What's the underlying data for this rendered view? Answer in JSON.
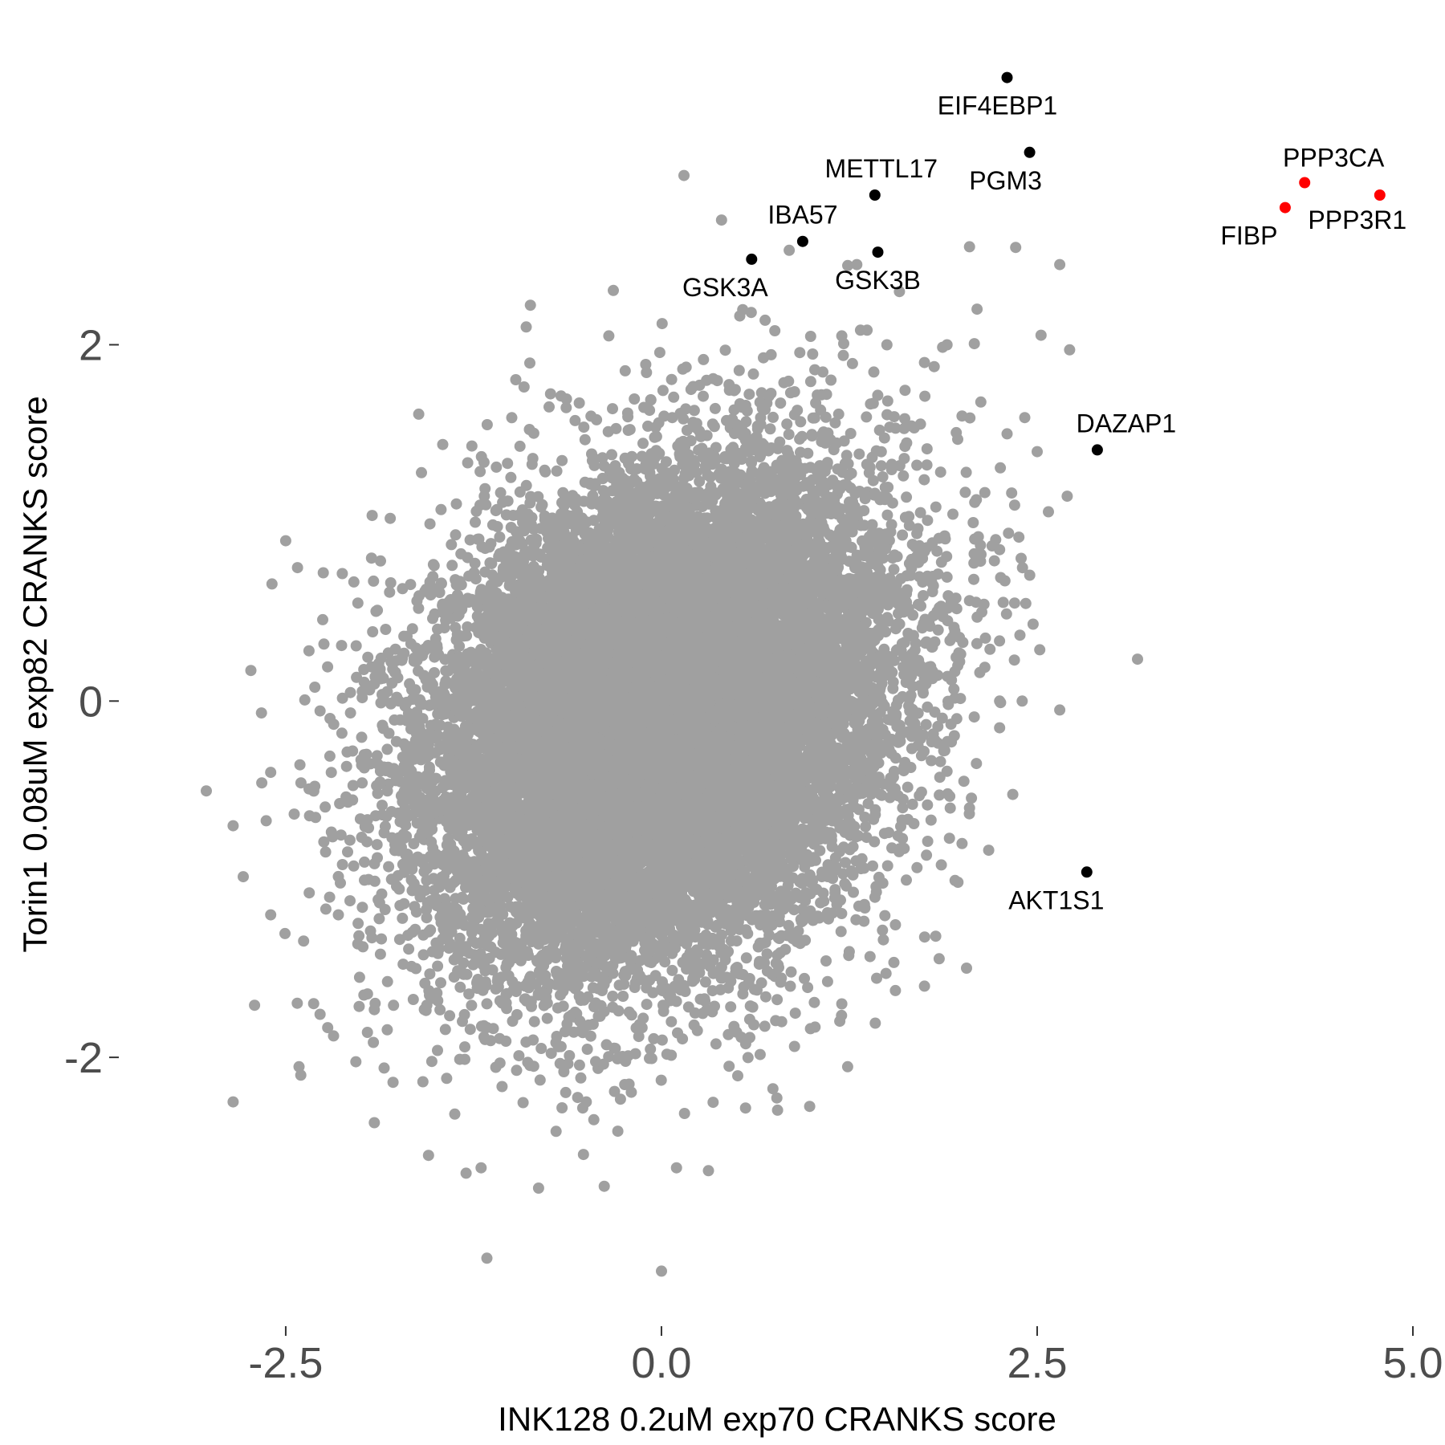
{
  "chart_data": {
    "type": "scatter",
    "xlabel": "INK128 0.2uM exp70 CRANKS score",
    "ylabel": "Torin1 0.08uM exp82 CRANKS score",
    "xlim": [
      -3.6,
      5.0
    ],
    "ylim": [
      -3.5,
      3.8
    ],
    "x_ticks": [
      -2.5,
      0.0,
      2.5,
      5.0
    ],
    "x_tick_labels": [
      "-2.5",
      "0.0",
      "2.5",
      "5.0"
    ],
    "y_ticks": [
      -2,
      0,
      2
    ],
    "y_tick_labels": [
      "-2",
      "0",
      "2"
    ],
    "grid": false,
    "legend": "none",
    "colors": {
      "background_points": "#a0a0a0",
      "highlight_points": "#000000",
      "calcineurin_points": "#ff0000"
    },
    "background_points": {
      "description_count": 18000,
      "x_mean": 0.0,
      "y_mean": -0.1,
      "x_sd": 0.75,
      "y_sd": 0.68,
      "correlation": 0.26,
      "outliers": [
        [
          0.15,
          2.95
        ],
        [
          0.4,
          2.7
        ],
        [
          0.85,
          2.53
        ],
        [
          1.3,
          2.45
        ],
        [
          2.05,
          2.55
        ],
        [
          2.65,
          2.45
        ],
        [
          -0.9,
          2.1
        ],
        [
          -0.35,
          2.05
        ],
        [
          0.3,
          1.8
        ],
        [
          1.2,
          2.05
        ],
        [
          1.5,
          2.0
        ],
        [
          1.9,
          2.0
        ],
        [
          2.1,
          2.2
        ],
        [
          1.75,
          1.9
        ],
        [
          2.0,
          1.6
        ],
        [
          2.3,
          1.5
        ],
        [
          2.5,
          1.4
        ],
        [
          2.7,
          1.15
        ],
        [
          2.35,
          1.1
        ],
        [
          2.25,
          0.85
        ],
        [
          2.35,
          0.55
        ],
        [
          2.25,
          0.0
        ],
        [
          2.4,
          0.0
        ],
        [
          2.65,
          -0.05
        ],
        [
          2.25,
          -0.15
        ],
        [
          2.05,
          -0.6
        ],
        [
          2.0,
          -0.8
        ],
        [
          -2.5,
          0.9
        ],
        [
          -2.25,
          0.72
        ],
        [
          -2.02,
          0.55
        ],
        [
          -2.6,
          -0.4
        ],
        [
          -2.85,
          -0.7
        ],
        [
          -2.6,
          -1.2
        ],
        [
          -2.15,
          -1.2
        ],
        [
          -1.98,
          -1.65
        ],
        [
          -2.4,
          -2.1
        ],
        [
          -2.85,
          -2.25
        ],
        [
          -1.55,
          -2.55
        ],
        [
          -1.3,
          -2.65
        ],
        [
          -1.2,
          -2.62
        ],
        [
          0.1,
          -2.62
        ],
        [
          -0.45,
          -2.35
        ],
        [
          -0.5,
          -2.25
        ],
        [
          0.0,
          -3.2
        ],
        [
          1.75,
          -1.6
        ],
        [
          1.2,
          -1.7
        ],
        [
          0.8,
          -1.8
        ],
        [
          0.45,
          -2.05
        ],
        [
          -0.85,
          -2.05
        ],
        [
          -0.8,
          -1.95
        ]
      ]
    },
    "highlighted_genes": [
      {
        "name": "EIF4EBP1",
        "x": 2.3,
        "y": 3.5,
        "color": "black",
        "label_pos": "below"
      },
      {
        "name": "PGM3",
        "x": 2.45,
        "y": 3.08,
        "color": "black",
        "label_pos": "below"
      },
      {
        "name": "METTL17",
        "x": 1.42,
        "y": 2.84,
        "color": "black",
        "label_pos": "above"
      },
      {
        "name": "IBA57",
        "x": 0.94,
        "y": 2.58,
        "color": "black",
        "label_pos": "above"
      },
      {
        "name": "GSK3A",
        "x": 0.6,
        "y": 2.48,
        "color": "black",
        "label_pos": "below"
      },
      {
        "name": "GSK3B",
        "x": 1.44,
        "y": 2.52,
        "color": "black",
        "label_pos": "below"
      },
      {
        "name": "DAZAP1",
        "x": 2.9,
        "y": 1.41,
        "color": "black",
        "label_pos": "above"
      },
      {
        "name": "AKT1S1",
        "x": 2.83,
        "y": -0.96,
        "color": "black",
        "label_pos": "below"
      },
      {
        "name": "PPP3CA",
        "x": 4.28,
        "y": 2.91,
        "color": "red",
        "label_pos": "above"
      },
      {
        "name": "FIBP",
        "x": 4.15,
        "y": 2.77,
        "color": "red",
        "label_pos": "below-left"
      },
      {
        "name": "PPP3R1",
        "x": 4.78,
        "y": 2.84,
        "color": "red",
        "label_pos": "below"
      }
    ]
  }
}
